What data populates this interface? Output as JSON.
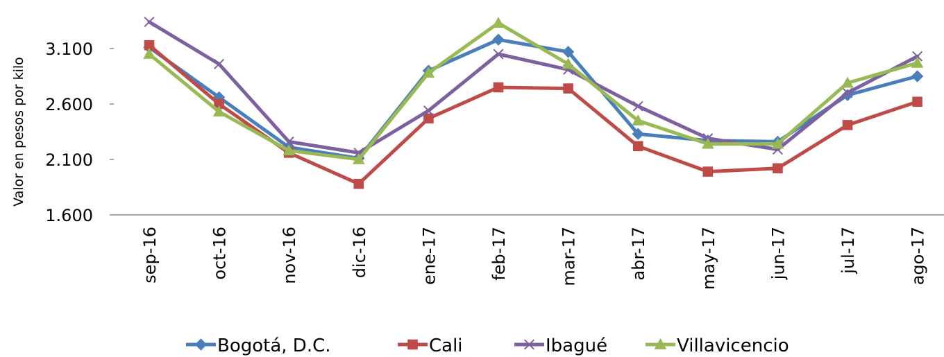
{
  "chart_data": {
    "type": "line",
    "ylabel": "Valor en pesos por kilo",
    "ylim": [
      1600,
      3350
    ],
    "yticks": [
      1600,
      2100,
      2600,
      3100
    ],
    "ytick_labels": [
      "1.600",
      "2.100",
      "2.600",
      "3.100"
    ],
    "categories": [
      "sep-16",
      "oct-16",
      "nov-16",
      "dic-16",
      "ene-17",
      "feb-17",
      "mar-17",
      "abr-17",
      "may-17",
      "jun-17",
      "jul-17",
      "ago-17"
    ],
    "legend_position": "bottom",
    "grid": false,
    "series": [
      {
        "name": "Bogotá, D.C.",
        "color": "#4a7ebb",
        "marker": "diamond",
        "values": [
          3110,
          2660,
          2210,
          2110,
          2900,
          3180,
          3070,
          2330,
          2270,
          2260,
          2680,
          2850
        ]
      },
      {
        "name": "Cali",
        "color": "#be4b48",
        "marker": "square",
        "values": [
          3130,
          2600,
          2160,
          1880,
          2470,
          2750,
          2740,
          2220,
          1990,
          2020,
          2410,
          2620
        ]
      },
      {
        "name": "Ibagué",
        "color": "#7d60a0",
        "marker": "x",
        "values": [
          3340,
          2960,
          2260,
          2160,
          2540,
          3050,
          2910,
          2580,
          2290,
          2190,
          2700,
          3030
        ]
      },
      {
        "name": "Villavicencio",
        "color": "#98b954",
        "marker": "triangle",
        "values": [
          3050,
          2530,
          2180,
          2100,
          2880,
          3330,
          2960,
          2450,
          2240,
          2240,
          2790,
          2970
        ]
      }
    ]
  }
}
